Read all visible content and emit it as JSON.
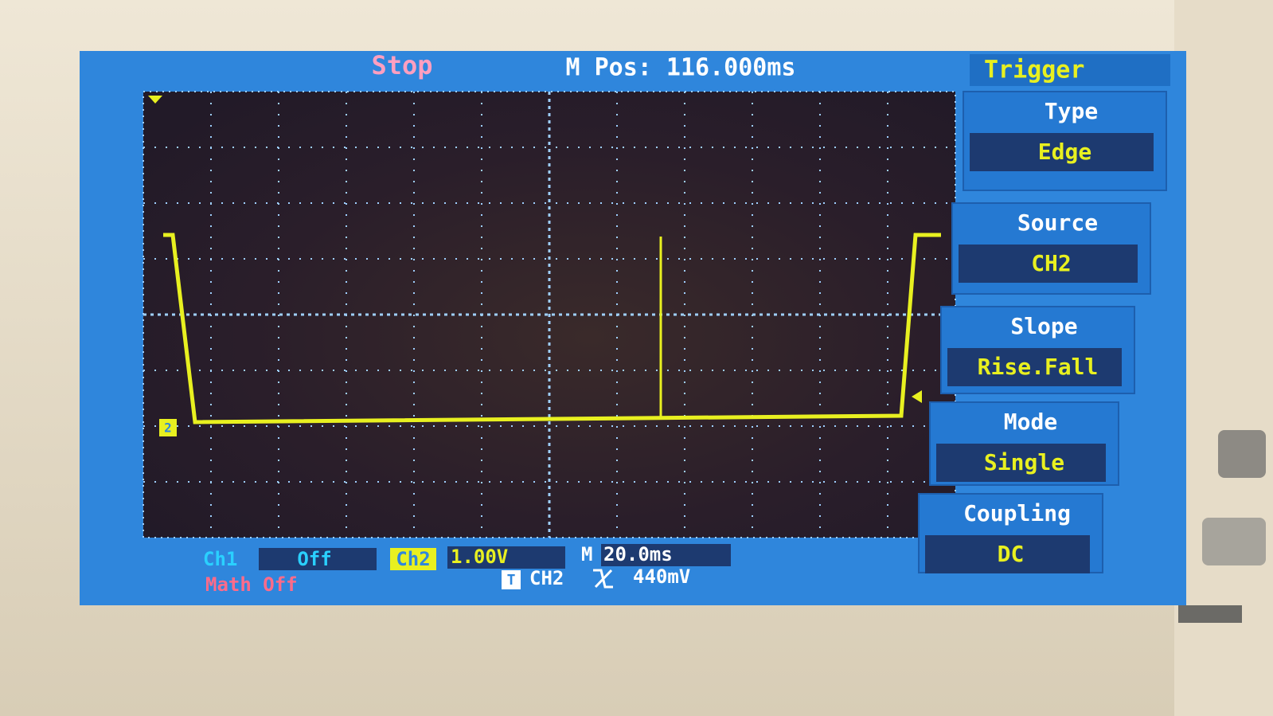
{
  "status": "Stop",
  "position": "M Pos: 116.000ms",
  "menu": {
    "title": "Trigger",
    "items": [
      {
        "label": "Type",
        "value": "Edge"
      },
      {
        "label": "Source",
        "value": "CH2"
      },
      {
        "label": "Slope",
        "value": "Rise.Fall"
      },
      {
        "label": "Mode",
        "value": "Single"
      },
      {
        "label": "Coupling",
        "value": "DC"
      }
    ]
  },
  "status_bar": {
    "ch1_label": "Ch1",
    "ch1_value": "Off",
    "ch2_label": "Ch2",
    "ch2_scale": "1.00V",
    "time_label": "M",
    "time_scale": "20.0ms",
    "math": "Math Off",
    "trigger_icon": "T",
    "trigger_source": "CH2",
    "trigger_level": "440mV"
  },
  "channel_marker": "2"
}
